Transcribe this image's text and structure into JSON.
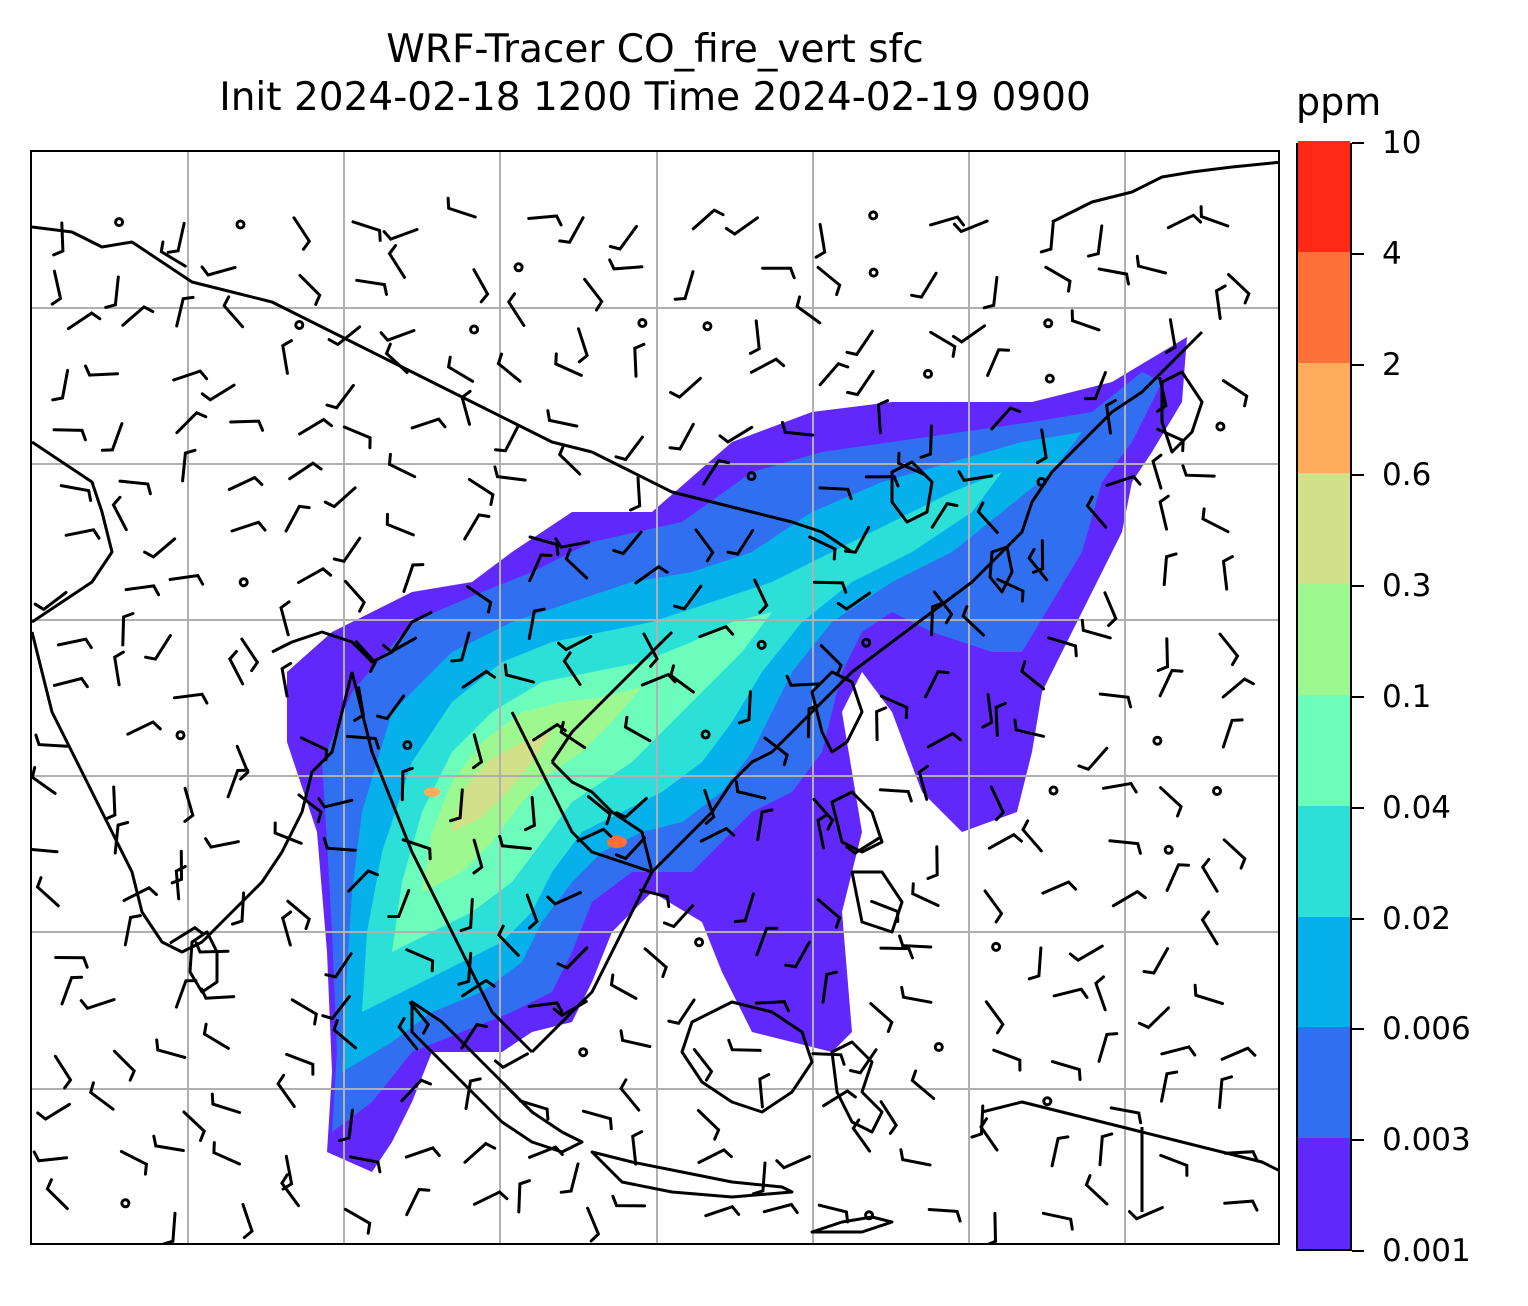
{
  "title_line1": "WRF-Tracer CO_fire_vert sfc",
  "title_line2": "Init 2024-02-18 1200 Time 2024-02-19 0900",
  "colorbar": {
    "unit": "ppm",
    "levels": [
      "0.001",
      "0.003",
      "0.006",
      "0.02",
      "0.04",
      "0.1",
      "0.3",
      "0.6",
      "2",
      "4",
      "10"
    ],
    "colors": [
      "#6128fc",
      "#3070f0",
      "#06b0ea",
      "#2ce0d8",
      "#6cfcbc",
      "#9ef890",
      "#d1e089",
      "#ffac5d",
      "#ff7038",
      "#ff2a15"
    ]
  },
  "map": {
    "gridline_color": "#b0b0b0",
    "coastline_color": "#000000",
    "wind_barb_color": "#000000"
  }
}
